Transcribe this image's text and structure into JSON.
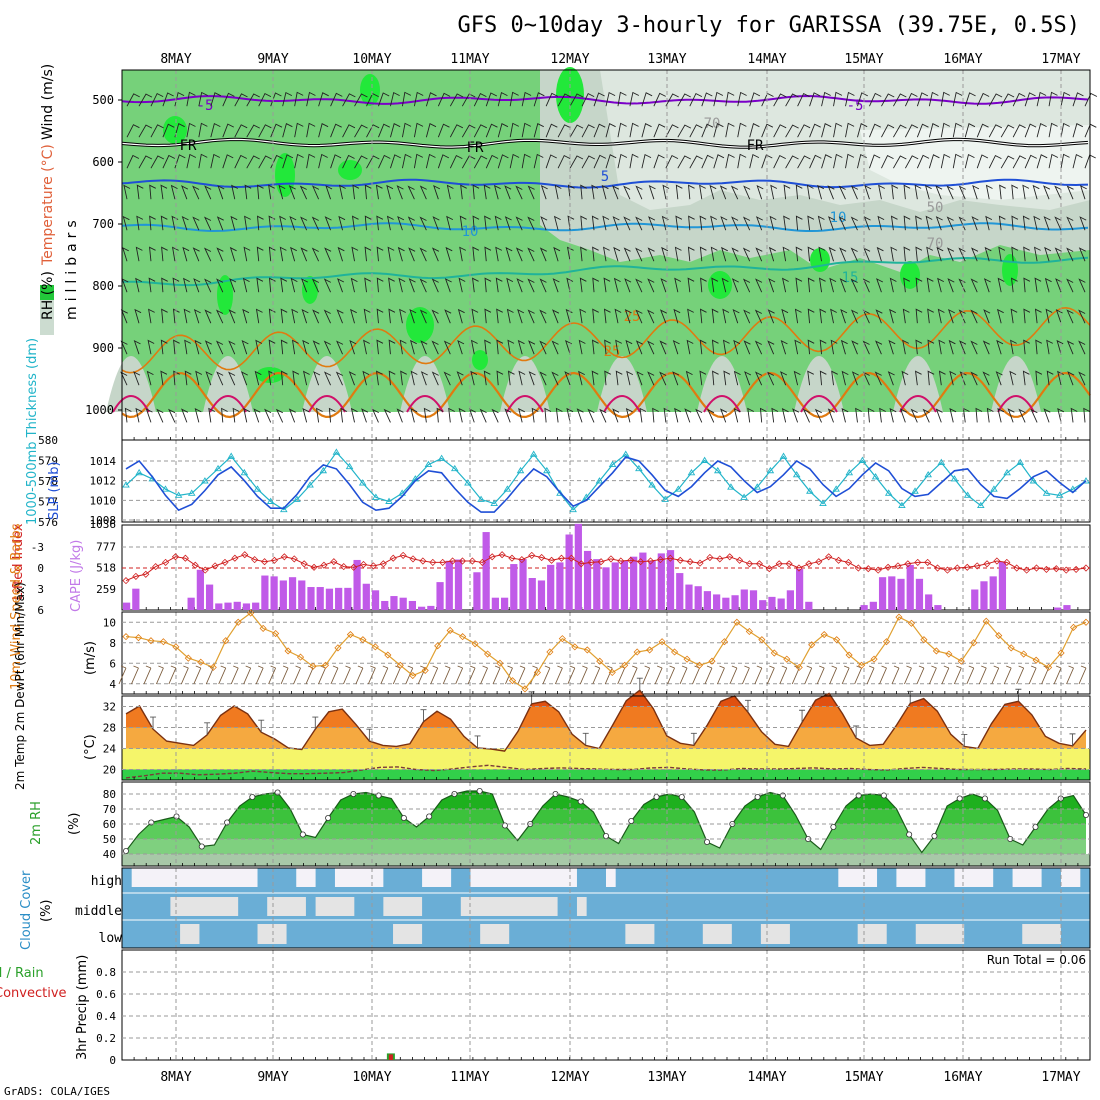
{
  "chart_data": {
    "type": "meteogram",
    "title": "GFS 0~10day 3-hourly for GARISSA (39.75E, 0.5S)",
    "credit": "GrADS: COLA/IGES",
    "x_labels": [
      "8MAY",
      "9MAY",
      "10MAY",
      "11MAY",
      "12MAY",
      "13MAY",
      "14MAY",
      "15MAY",
      "16MAY",
      "17MAY"
    ],
    "colors": {
      "purple": "#7a00c8",
      "blue": "#1f4fd6",
      "cyan": "#21b4c9",
      "orange": "#e07a10",
      "green": "#2aa02a",
      "red": "#d02020",
      "gray": "#9a9a9a"
    },
    "panels": {
      "upper_air": {
        "ylabels": [
          "Wind (m/s)",
          "Temperature (°C)",
          "RH (%)",
          "(millibars)"
        ],
        "yaxis_title": "millibars",
        "yticks": [
          500,
          600,
          700,
          800,
          900,
          1000
        ],
        "ylim": [
          1000,
          450
        ],
        "contour_labels": [
          "5",
          "FR",
          "FR",
          "FR",
          "5",
          "5",
          "10",
          "10",
          "15",
          "25",
          "70",
          "50",
          "70",
          "25",
          "70"
        ],
        "isotherms": [
          {
            "label": "-5",
            "level": 500,
            "color": "#7a00c8"
          },
          {
            "label": "FR",
            "level": 570,
            "color": "#000000"
          },
          {
            "label": "5",
            "level": 635,
            "color": "#1f4fd6"
          },
          {
            "label": "10",
            "level": 705,
            "color": "#2196d6"
          },
          {
            "label": "15",
            "level": 795,
            "color": "#1fb39a"
          },
          {
            "label": "25",
            "level": 895,
            "color": "#e07a10"
          }
        ]
      },
      "slp_thickness": {
        "ylabel_left": "1000-500mb Thickness (dm)",
        "ylabel_right": "SLP (mb)",
        "thickness_ticks": [
          576,
          577,
          578,
          579,
          580
        ],
        "slp_ticks": [
          1008,
          1010,
          1012,
          1014
        ],
        "thickness": [
          577.8,
          578.4,
          578.1,
          577.6,
          577.3,
          577.4,
          578.0,
          578.6,
          579.2,
          578.4,
          577.6,
          577.0,
          576.6,
          577.1,
          577.8,
          578.5,
          579.4,
          578.7,
          577.9,
          577.2,
          577.0,
          577.4,
          578.1,
          578.8,
          579.1,
          578.6,
          577.9,
          577.1,
          576.9,
          577.6,
          578.5,
          579.3,
          578.5,
          577.4,
          576.6,
          577.2,
          578.0,
          578.8,
          579.3,
          578.6,
          577.8,
          577.1,
          577.6,
          578.4,
          579.0,
          578.5,
          577.7,
          577.2,
          577.7,
          578.5,
          579.2,
          578.3,
          577.5,
          576.9,
          577.6,
          578.4,
          579.0,
          578.2,
          577.4,
          576.8,
          577.5,
          578.3,
          578.9,
          578.1,
          577.3,
          576.8,
          577.6,
          578.4,
          578.9,
          578.0,
          577.4,
          577.3,
          577.6,
          578.0
        ],
        "slp": [
          1013.2,
          1014.0,
          1012.4,
          1010.5,
          1009.0,
          1009.6,
          1011.0,
          1012.6,
          1013.4,
          1012.0,
          1010.4,
          1009.2,
          1009.2,
          1010.6,
          1012.4,
          1013.6,
          1013.2,
          1011.6,
          1009.8,
          1009.0,
          1009.2,
          1010.4,
          1012.0,
          1013.0,
          1012.8,
          1011.2,
          1009.8,
          1008.8,
          1008.8,
          1010.2,
          1011.8,
          1013.2,
          1012.4,
          1010.8,
          1009.4,
          1010.0,
          1011.4,
          1012.8,
          1014.4,
          1014.0,
          1012.6,
          1011.0,
          1010.4,
          1011.4,
          1012.8,
          1014.0,
          1013.4,
          1012.0,
          1010.8,
          1011.4,
          1012.6,
          1014.0,
          1013.2,
          1011.6,
          1010.4,
          1011.2,
          1012.6,
          1013.8,
          1013.0,
          1011.2,
          1010.4,
          1010.6,
          1011.8,
          1013.0,
          1013.2,
          1011.6,
          1010.4,
          1010.2,
          1011.2,
          1012.4,
          1013.0,
          1011.8,
          1010.8,
          1012.0
        ]
      },
      "cape_li": {
        "ylabel_left": "Lifted Index",
        "ylabel_right": "CAPE (J/kg)",
        "li_ticks": [
          "-3",
          "0",
          "3",
          "6"
        ],
        "cape_ticks": [
          259,
          518,
          777
        ],
        "cape_max": 1036,
        "cape_top_label": "1036",
        "cape": [
          90,
          260,
          0,
          0,
          0,
          0,
          0,
          150,
          490,
          310,
          80,
          90,
          100,
          80,
          90,
          420,
          410,
          360,
          400,
          360,
          280,
          280,
          260,
          270,
          270,
          610,
          320,
          240,
          110,
          170,
          150,
          110,
          40,
          50,
          340,
          600,
          615,
          0,
          460,
          950,
          150,
          150,
          560,
          620,
          390,
          360,
          550,
          580,
          920,
          1050,
          720,
          620,
          520,
          580,
          600,
          650,
          700,
          600,
          690,
          730,
          450,
          310,
          290,
          230,
          190,
          150,
          180,
          250,
          240,
          120,
          160,
          140,
          240,
          500,
          100,
          0,
          0,
          0,
          0,
          0,
          60,
          100,
          400,
          410,
          380,
          550,
          380,
          190,
          60,
          0,
          0,
          0,
          250,
          350,
          410,
          590,
          0,
          0,
          0,
          0,
          0,
          30,
          60,
          0,
          0
        ],
        "li": [
          1.8,
          1.2,
          0.9,
          -0.2,
          -0.8,
          -1.6,
          -1.4,
          -0.4,
          0.3,
          -0.3,
          -0.8,
          -1.4,
          -1.9,
          -1.2,
          -0.9,
          -1.1,
          -1.6,
          -1.3,
          -0.6,
          -0.1,
          -0.4,
          -0.9,
          -0.2,
          -0.1,
          -0.5,
          -0.3,
          -0.6,
          -1.4,
          -1.8,
          -1.3,
          -1.0,
          -0.8,
          -0.8,
          -1.0,
          -1.0,
          -1.0,
          -0.8,
          -1.6,
          -1.9,
          -1.4,
          -1.2,
          -1.8,
          -1.5,
          -1.1,
          -1.4,
          -1.4,
          -0.6,
          -0.8,
          -0.9,
          -1.3,
          -1.0,
          -1.1,
          -0.9,
          -1.0,
          -1.2,
          -1.4,
          -1.1,
          -0.9,
          -0.7,
          -1.5,
          -1.3,
          -1.6,
          -1.1,
          -0.6,
          -0.6,
          0.1,
          -0.6,
          -0.6,
          0.0,
          -0.6,
          -0.9,
          -1.6,
          -1.1,
          -0.8,
          0.0,
          0.1,
          0.3,
          -0.1,
          -0.3,
          -0.6,
          -0.8,
          -0.8,
          0.0,
          0.3,
          0.0,
          -0.1,
          -0.3,
          -0.6,
          -1.0,
          -0.8,
          0.0,
          0.3,
          0.0,
          0.2,
          0.1,
          0.3,
          0.2,
          0.0
        ]
      },
      "wind10m": {
        "ylabel": "10m Wind Speed & Barbs",
        "yaxis_title": "(m/s)",
        "yticks": [
          4,
          6,
          8,
          10
        ],
        "ylim": [
          3,
          11
        ],
        "speed": [
          8.6,
          8.5,
          8.2,
          8.1,
          7.6,
          6.5,
          6.1,
          5.6,
          8.2,
          10.0,
          10.9,
          9.4,
          8.9,
          7.2,
          6.6,
          5.7,
          5.8,
          7.5,
          8.8,
          8.3,
          7.6,
          6.8,
          5.8,
          4.8,
          5.3,
          7.7,
          9.2,
          8.6,
          7.9,
          6.9,
          6.0,
          4.3,
          3.5,
          5.1,
          7.1,
          8.4,
          7.6,
          7.3,
          6.2,
          5.1,
          5.8,
          7.1,
          7.3,
          8.1,
          7.1,
          6.4,
          5.8,
          6.2,
          8.1,
          10.0,
          9.1,
          8.3,
          7.0,
          6.4,
          5.6,
          7.8,
          8.8,
          8.3,
          6.8,
          5.8,
          6.4,
          8.1,
          10.5,
          9.9,
          8.3,
          7.2,
          6.9,
          6.2,
          8.0,
          10.1,
          8.7,
          7.5,
          6.9,
          6.3,
          5.6,
          7.0,
          9.5,
          10.0
        ]
      },
      "temp2m": {
        "ylabel": "2m Temp 2m DewPt (6hr Min/Max)",
        "yaxis_title": "(°C)",
        "yticks": [
          20,
          24,
          28,
          32
        ],
        "ylim": [
          18,
          34
        ],
        "temp": [
          30.6,
          32.1,
          27.7,
          25.4,
          25.0,
          24.6,
          26.6,
          30.3,
          32.1,
          30.6,
          27.1,
          25.8,
          24.1,
          23.8,
          27.7,
          31.0,
          31.5,
          28.6,
          25.4,
          24.6,
          24.4,
          24.9,
          29.1,
          31.1,
          29.6,
          26.3,
          24.1,
          23.9,
          23.5,
          27.3,
          32.5,
          33.0,
          31.0,
          26.7,
          24.6,
          24.0,
          28.5,
          33.1,
          35.1,
          31.6,
          26.4,
          25.0,
          24.6,
          28.5,
          33.0,
          34.0,
          30.9,
          27.2,
          24.8,
          24.4,
          29.0,
          33.2,
          34.5,
          30.6,
          26.0,
          24.6,
          24.8,
          28.5,
          32.6,
          33.5,
          31.1,
          26.7,
          24.4,
          24.0,
          28.7,
          32.4,
          33.0,
          30.4,
          26.3,
          25.0,
          24.5,
          27.5
        ],
        "dewpt": [
          18.4,
          18.8,
          19.3,
          19.3,
          19.0,
          19.1,
          19.3,
          19.7,
          19.4,
          19.2,
          19.2,
          19.3,
          19.4,
          19.9,
          20.4,
          20.5,
          20.0,
          19.8,
          20.1,
          20.5,
          20.8,
          20.4,
          20.0,
          20.2,
          20.3,
          20.2,
          20.1,
          20.0,
          20.0,
          20.3,
          20.4,
          20.1,
          19.9,
          19.9,
          20.2,
          20.1,
          20.1,
          20.2,
          20.3,
          20.1,
          20.2,
          20.0,
          19.9,
          20.2,
          20.4,
          20.2,
          20.0,
          20.0,
          20.0,
          20.1,
          20.1,
          20.0,
          20.2,
          20.1
        ]
      },
      "rh2m": {
        "ylabel": "2m RH",
        "yaxis_title": "(%)",
        "yticks": [
          40,
          50,
          60,
          70,
          80
        ],
        "ylim": [
          32,
          88
        ],
        "rh": [
          42,
          53,
          61,
          63,
          65,
          58,
          45,
          46,
          61,
          72,
          78,
          80,
          81,
          70,
          53,
          51,
          64,
          76,
          80,
          81,
          79,
          77,
          64,
          58,
          65,
          76,
          80,
          82,
          82,
          80,
          59,
          49,
          60,
          72,
          80,
          78,
          75,
          68,
          52,
          47,
          62,
          73,
          78,
          80,
          78,
          68,
          48,
          44,
          60,
          72,
          78,
          81,
          79,
          66,
          50,
          43,
          58,
          72,
          79,
          80,
          79,
          70,
          53,
          41,
          52,
          72,
          77,
          80,
          77,
          69,
          50,
          46,
          58,
          70,
          77,
          79,
          66
        ]
      },
      "cloud": {
        "ylabel": "Cloud Cover",
        "yaxis_title": "(%)",
        "levels": [
          "high",
          "middle",
          "low"
        ]
      },
      "precip": {
        "ylabel": "3hr Precip (mm)",
        "legend": [
          "Total / Rain",
          "Convective"
        ],
        "run_total": "Run Total = 0.06",
        "yticks": [
          "0",
          "0.2",
          "0.4",
          "0.6",
          "0.8"
        ],
        "ylim": [
          0,
          1
        ],
        "total": [
          0,
          0,
          0,
          0,
          0,
          0,
          0,
          0,
          0,
          0,
          0,
          0,
          0,
          0,
          0,
          0,
          0,
          0,
          0,
          0,
          0,
          0,
          0.06,
          0,
          0,
          0,
          0,
          0,
          0,
          0,
          0,
          0,
          0,
          0,
          0,
          0,
          0,
          0,
          0,
          0,
          0,
          0,
          0,
          0,
          0,
          0,
          0,
          0,
          0,
          0,
          0,
          0,
          0,
          0,
          0,
          0,
          0,
          0,
          0,
          0,
          0,
          0,
          0,
          0,
          0,
          0,
          0,
          0,
          0,
          0,
          0,
          0,
          0,
          0,
          0,
          0,
          0,
          0,
          0,
          0,
          0
        ]
      }
    }
  }
}
